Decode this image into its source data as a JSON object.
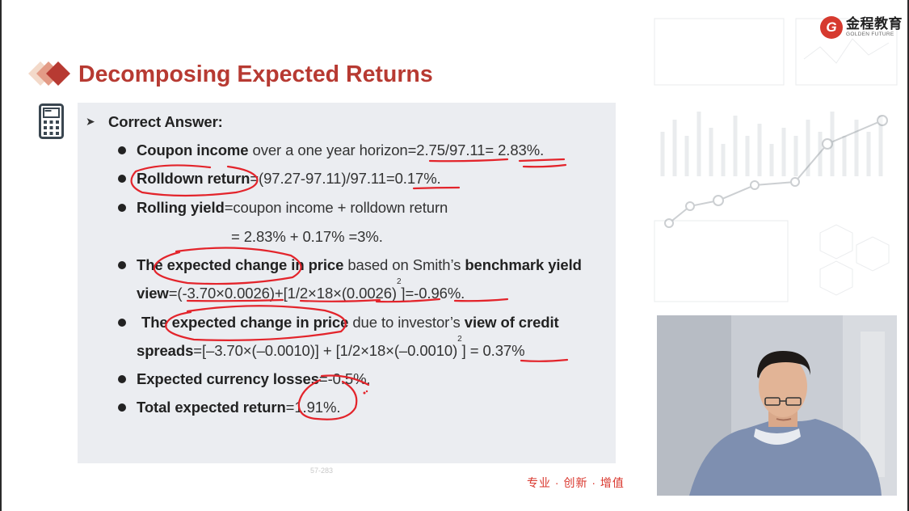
{
  "logo": {
    "cn": "金程教育",
    "en": "GOLDEN FUTURE"
  },
  "title": "Decomposing Expected Returns",
  "heading": "Correct Answer:",
  "l1": {
    "b1": "Coupon income",
    "t1": " over a one year horizon=2.75/97.11= 2.83%."
  },
  "l2": {
    "b1": "Rolldown return",
    "t1": "=(97.27-97.11)/97.11=0.17%."
  },
  "l3": {
    "b1": "Rolling yield",
    "t1": "=coupon income + rolldown return"
  },
  "l3b": "= 2.83% + 0.17% =3%.",
  "l4": {
    "b1": "The expected change in price",
    "t1": " based on Smith’s ",
    "b2": "benchmark yield"
  },
  "l4b": {
    "b1": "view",
    "t1": "=(-3.70×0.0026)+[1/2×18×(0.0026)",
    "sup": "2",
    "t2": "]=-0.96%."
  },
  "l5": {
    "b1": "The expected change in price",
    "t1": " due to investor’s ",
    "b2": "view of credit"
  },
  "l5b": {
    "b1": "spreads",
    "t1": "=[–3.70×(–0.0010)] + [1/2×18×(–0.0010)",
    "sup": "2",
    "t2": "] = 0.37%"
  },
  "l6": {
    "b1": "Expected currency losses",
    "t1": "=-0.5%."
  },
  "l7": {
    "b1": "Total expected return",
    "t1": "=1.91%."
  },
  "slogan": "专业 · 创新 · 增值",
  "footer": "57-283",
  "colors": {
    "title": "#b73a32",
    "ink": "#e3242b",
    "panel": "#ebedf1"
  }
}
